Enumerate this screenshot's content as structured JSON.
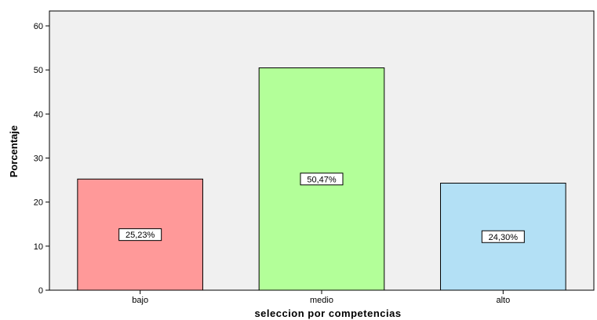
{
  "chart_data": {
    "type": "bar",
    "categories": [
      "bajo",
      "medio",
      "alto"
    ],
    "values": [
      25.23,
      50.47,
      24.3
    ],
    "data_labels": [
      "25,23%",
      "50,47%",
      "24,30%"
    ],
    "colors": [
      "#ff9999",
      "#b3ff99",
      "#b3e0f5"
    ],
    "xlabel": "seleccion por competencias",
    "ylabel": "Porcentaje",
    "ylim": [
      0,
      62
    ],
    "yticks": [
      0,
      10,
      20,
      30,
      40,
      50,
      60
    ],
    "ytick_labels": [
      "0",
      "10",
      "20",
      "30",
      "40",
      "50",
      "60"
    ],
    "plot_background": "#f0f0f0",
    "grid": false,
    "legend": "none"
  }
}
